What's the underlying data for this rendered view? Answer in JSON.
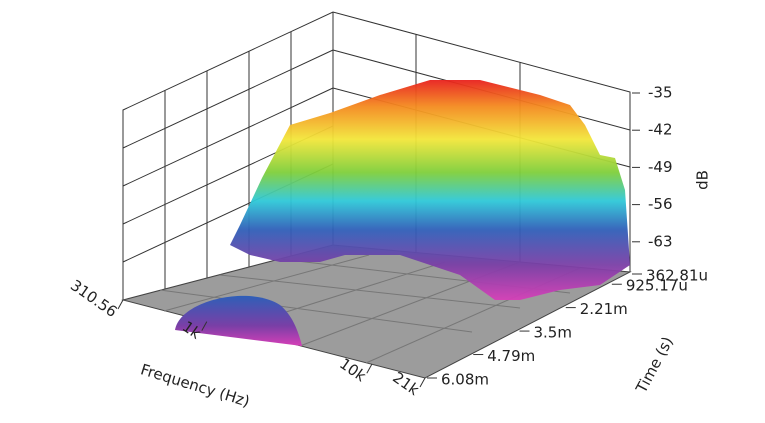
{
  "chart_data": {
    "type": "waterfall",
    "xlabel": "Frequency (Hz)",
    "ylabel": "Time (s)",
    "zlabel": "dB",
    "xscale": "log",
    "xlim": [
      310.56,
      21000
    ],
    "xticks": [
      310.56,
      {
        "value": 1000,
        "label": "1k"
      },
      {
        "value": 10000,
        "label": "10k"
      },
      {
        "value": 21000,
        "label": "21k"
      }
    ],
    "ylim": [
      0.00036281,
      0.00608
    ],
    "yticks": [
      {
        "value": 0.00036281,
        "label": "362.81u"
      },
      {
        "value": 0.00092517,
        "label": "925.17u"
      },
      {
        "value": 0.00221,
        "label": "2.21m"
      },
      {
        "value": 0.0035,
        "label": "3.5m"
      },
      {
        "value": 0.00479,
        "label": "4.79m"
      },
      {
        "value": 0.00608,
        "label": "6.08m"
      }
    ],
    "zlim": [
      -70,
      -35
    ],
    "zticks": [
      -35,
      -42,
      -49,
      -56,
      -63
    ]
  }
}
